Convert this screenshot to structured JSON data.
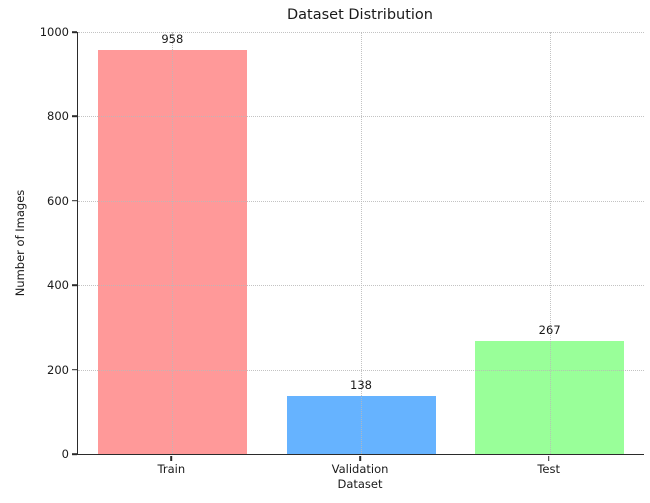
{
  "chart_data": {
    "type": "bar",
    "title": "Dataset Distribution",
    "xlabel": "Dataset",
    "ylabel": "Number of Images",
    "categories": [
      "Train",
      "Validation",
      "Test"
    ],
    "values": [
      958,
      138,
      267
    ],
    "value_labels": [
      "958",
      "138",
      "267"
    ],
    "bar_colors": [
      "#ff9999",
      "#66b3ff",
      "#99ff99"
    ],
    "yticks": [
      0,
      200,
      400,
      600,
      800,
      1000
    ],
    "ylim": [
      0,
      1000
    ],
    "grid": "dotted, horizontal and vertical, drawn over bars",
    "legend_position": "none",
    "spines": [
      "left",
      "bottom"
    ]
  }
}
